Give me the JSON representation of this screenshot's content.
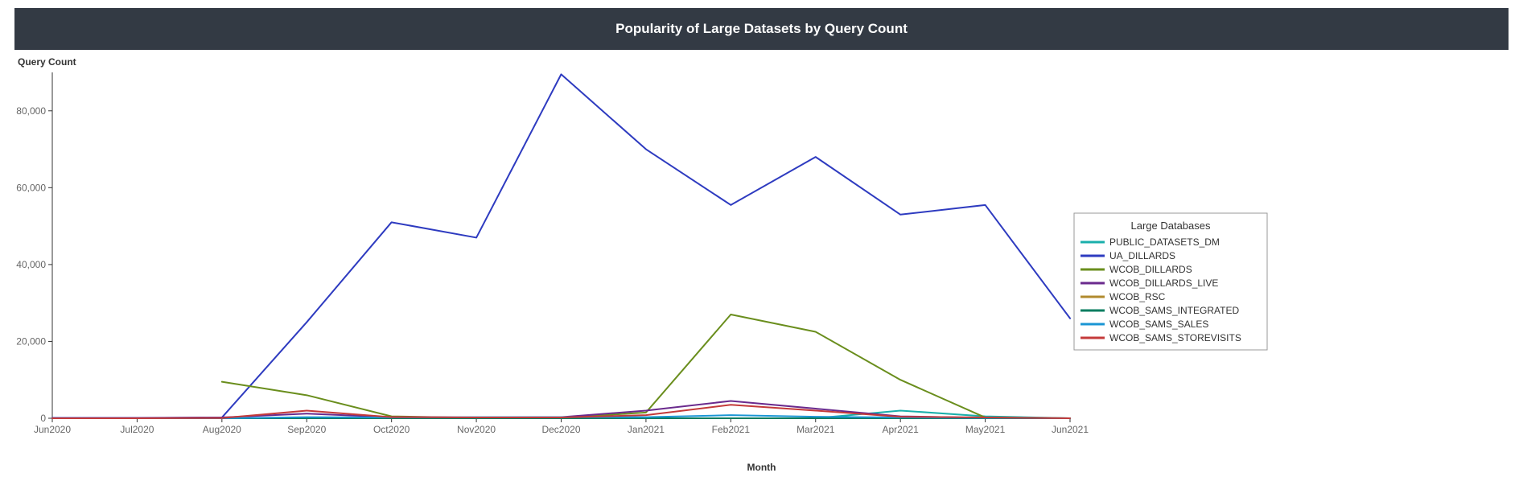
{
  "title": "Popularity of Large Datasets by Query Count",
  "chart": {
    "type": "line",
    "y_axis_label": "Query Count",
    "x_axis_label": "Month",
    "background_color": "#ffffff",
    "title_bar_bg": "#333a44",
    "title_color": "#ffffff",
    "title_fontsize": 17,
    "axis_label_fontsize": 12,
    "tick_fontsize": 12,
    "tick_color": "#666666",
    "axis_line_color": "#333333",
    "y_ticks": [
      0,
      20000,
      40000,
      60000,
      80000
    ],
    "y_tick_labels": [
      "0",
      "20,000",
      "40,000",
      "60,000",
      "80,000"
    ],
    "ymin": 0,
    "ymax": 90000,
    "x_categories": [
      "Jun2020",
      "Jul2020",
      "Aug2020",
      "Sep2020",
      "Oct2020",
      "Nov2020",
      "Dec2020",
      "Jan2021",
      "Feb2021",
      "Mar2021",
      "Apr2021",
      "May2021",
      "Jun2021"
    ],
    "line_width": 2,
    "legend": {
      "title": "Large Databases",
      "title_fontsize": 13,
      "item_fontsize": 12,
      "border_color": "#999999",
      "bg_color": "#ffffff"
    },
    "series": [
      {
        "name": "PUBLIC_DATASETS_DM",
        "color": "#1aafab",
        "values": [
          0,
          0,
          0,
          0,
          0,
          0,
          0,
          0,
          0,
          0,
          2000,
          500,
          0
        ]
      },
      {
        "name": "UA_DILLARDS",
        "color": "#2e3bc0",
        "values": [
          100,
          100,
          200,
          25000,
          51000,
          47000,
          89500,
          70000,
          55500,
          68000,
          53000,
          55500,
          26000
        ]
      },
      {
        "name": "WCOB_DILLARDS",
        "color": "#6a8e1d",
        "values": [
          null,
          null,
          9500,
          6000,
          500,
          100,
          100,
          1500,
          27000,
          22500,
          10000,
          200,
          0
        ]
      },
      {
        "name": "WCOB_DILLARDS_LIVE",
        "color": "#6a2a8d",
        "values": [
          0,
          50,
          200,
          1200,
          300,
          200,
          300,
          2000,
          4500,
          2500,
          500,
          100,
          0
        ]
      },
      {
        "name": "WCOB_RSC",
        "color": "#b08a2e",
        "values": [
          0,
          0,
          0,
          0,
          0,
          0,
          0,
          0,
          0,
          0,
          0,
          0,
          0
        ]
      },
      {
        "name": "WCOB_SAMS_INTEGRATED",
        "color": "#0a7d61",
        "values": [
          0,
          0,
          0,
          0,
          0,
          0,
          0,
          0,
          0,
          0,
          0,
          0,
          0
        ]
      },
      {
        "name": "WCOB_SAMS_SALES",
        "color": "#1a96d4",
        "values": [
          0,
          0,
          0,
          300,
          200,
          300,
          300,
          300,
          800,
          400,
          200,
          100,
          0
        ]
      },
      {
        "name": "WCOB_SAMS_STOREVISITS",
        "color": "#c43a3a",
        "values": [
          0,
          0,
          50,
          2000,
          300,
          200,
          200,
          800,
          3500,
          2000,
          400,
          200,
          0
        ]
      }
    ]
  }
}
